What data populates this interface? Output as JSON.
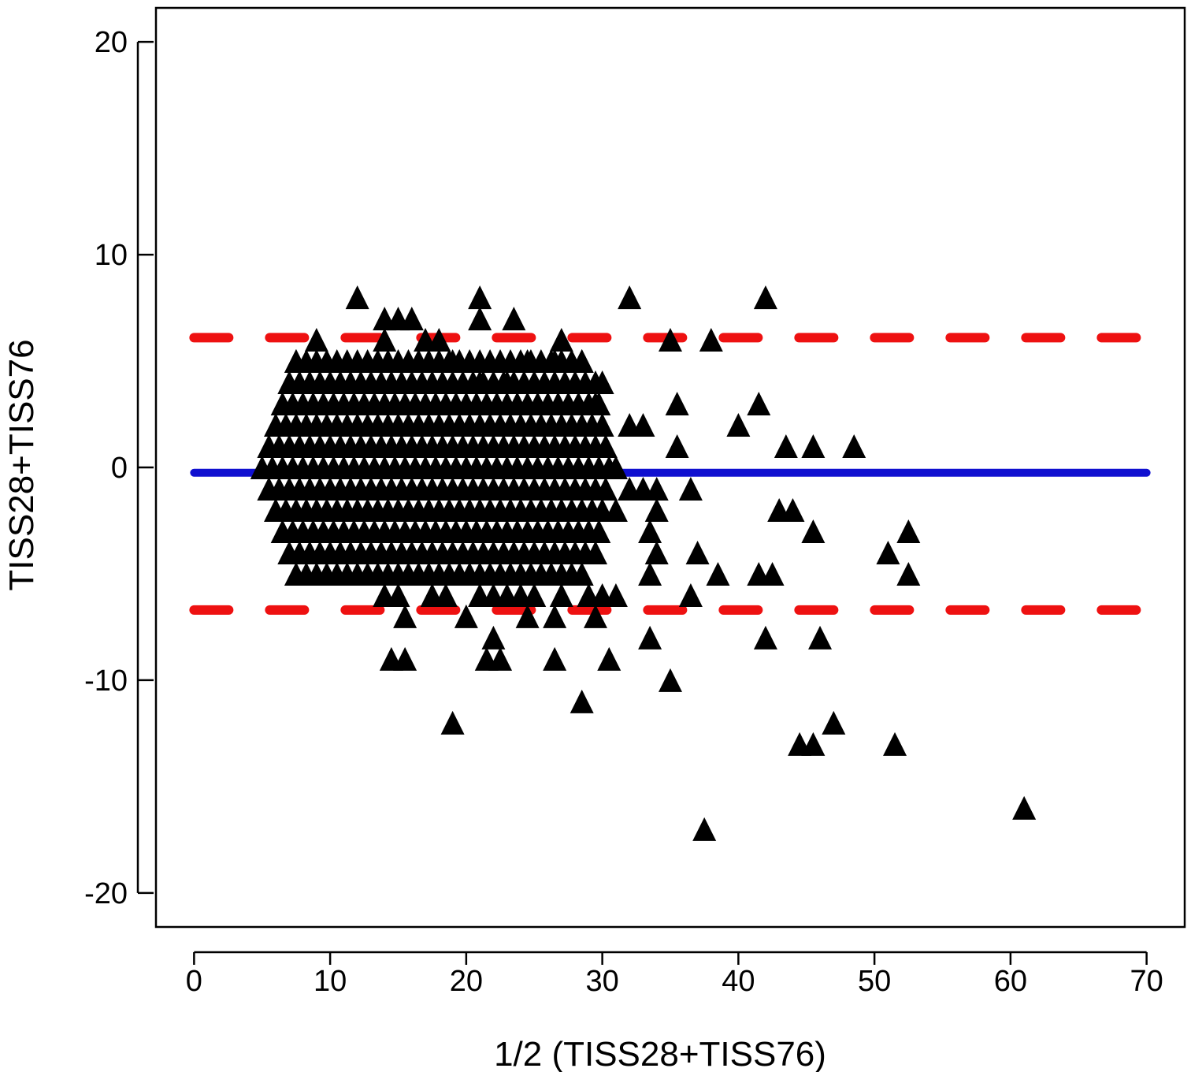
{
  "chart_data": {
    "type": "scatter",
    "title": "",
    "xlabel": "1/2 (TISS28+TISS76)",
    "ylabel": "TISS28+TISS76",
    "xlim": [
      -2.8,
      72.8
    ],
    "ylim": [
      -21.6,
      21.6
    ],
    "x_ticks": [
      0,
      10,
      20,
      30,
      40,
      50,
      60,
      70
    ],
    "y_ticks": [
      -20,
      -10,
      0,
      10,
      20
    ],
    "x_tick_labels": [
      "0",
      "10",
      "20",
      "30",
      "40",
      "50",
      "60",
      "70"
    ],
    "y_tick_labels": [
      "-20",
      "-10",
      "0",
      "10",
      "20"
    ],
    "grid": false,
    "legend": "none",
    "marker": "filled-triangle",
    "colors": {
      "points": "#000000",
      "mean_line": "#1010d0",
      "limit_lines": "#ee1111"
    },
    "reference_lines": [
      {
        "kind": "mean",
        "y": -0.25,
        "x_range": [
          0,
          70
        ],
        "style": "solid"
      },
      {
        "kind": "upper-limit",
        "y": 6.1,
        "x_range": [
          0,
          70
        ],
        "style": "dashed"
      },
      {
        "kind": "lower-limit",
        "y": -6.7,
        "x_range": [
          0,
          70
        ],
        "style": "dashed"
      }
    ],
    "dense_cluster": {
      "x_range": [
        5,
        31
      ],
      "y_range": [
        -5,
        5
      ],
      "step_x": 0.75,
      "y_values": [
        -5,
        -4,
        -3,
        -2,
        -1,
        0,
        1,
        2,
        3,
        4,
        5
      ]
    },
    "points": [
      [
        12,
        8
      ],
      [
        21,
        8
      ],
      [
        32,
        8
      ],
      [
        42,
        8
      ],
      [
        14,
        7
      ],
      [
        15,
        7
      ],
      [
        16,
        7
      ],
      [
        21,
        7
      ],
      [
        23.5,
        7
      ],
      [
        9,
        6
      ],
      [
        14,
        6
      ],
      [
        17,
        6
      ],
      [
        18,
        6
      ],
      [
        27,
        6
      ],
      [
        35,
        6
      ],
      [
        38,
        6
      ],
      [
        7.5,
        5
      ],
      [
        19,
        5
      ],
      [
        24.5,
        5
      ],
      [
        26.5,
        5
      ],
      [
        28.5,
        5
      ],
      [
        21,
        4
      ],
      [
        23,
        4
      ],
      [
        25,
        4
      ],
      [
        30,
        4
      ],
      [
        29.5,
        3
      ],
      [
        35.5,
        3
      ],
      [
        41.5,
        3
      ],
      [
        32,
        2
      ],
      [
        33,
        2
      ],
      [
        40,
        2
      ],
      [
        35.5,
        1
      ],
      [
        43.5,
        1
      ],
      [
        45.5,
        1
      ],
      [
        48.5,
        1
      ],
      [
        31,
        0
      ],
      [
        32,
        -1
      ],
      [
        33,
        -1
      ],
      [
        34,
        -1
      ],
      [
        36.5,
        -1
      ],
      [
        31,
        -2
      ],
      [
        34,
        -2
      ],
      [
        43,
        -2
      ],
      [
        44,
        -2
      ],
      [
        33.5,
        -3
      ],
      [
        45.5,
        -3
      ],
      [
        52.5,
        -3
      ],
      [
        34,
        -4
      ],
      [
        37,
        -4
      ],
      [
        51,
        -4
      ],
      [
        33.5,
        -5
      ],
      [
        38.5,
        -5
      ],
      [
        41.5,
        -5
      ],
      [
        42.5,
        -5
      ],
      [
        52.5,
        -5
      ],
      [
        14,
        -6
      ],
      [
        15,
        -6
      ],
      [
        17.5,
        -6
      ],
      [
        18.5,
        -6
      ],
      [
        21,
        -6
      ],
      [
        22,
        -6
      ],
      [
        23,
        -6
      ],
      [
        24,
        -6
      ],
      [
        25,
        -6
      ],
      [
        27,
        -6
      ],
      [
        29,
        -6
      ],
      [
        30,
        -6
      ],
      [
        31,
        -6
      ],
      [
        36.5,
        -6
      ],
      [
        15.5,
        -7
      ],
      [
        20,
        -7
      ],
      [
        24.5,
        -7
      ],
      [
        26.5,
        -7
      ],
      [
        29.5,
        -7
      ],
      [
        22,
        -8
      ],
      [
        33.5,
        -8
      ],
      [
        42,
        -8
      ],
      [
        46,
        -8
      ],
      [
        14.5,
        -9
      ],
      [
        15.5,
        -9
      ],
      [
        21.5,
        -9
      ],
      [
        22.5,
        -9
      ],
      [
        26.5,
        -9
      ],
      [
        30.5,
        -9
      ],
      [
        35,
        -10
      ],
      [
        28.5,
        -11
      ],
      [
        19,
        -12
      ],
      [
        47,
        -12
      ],
      [
        44.5,
        -13
      ],
      [
        45.5,
        -13
      ],
      [
        51.5,
        -13
      ],
      [
        61,
        -16
      ],
      [
        37.5,
        -17
      ]
    ]
  }
}
